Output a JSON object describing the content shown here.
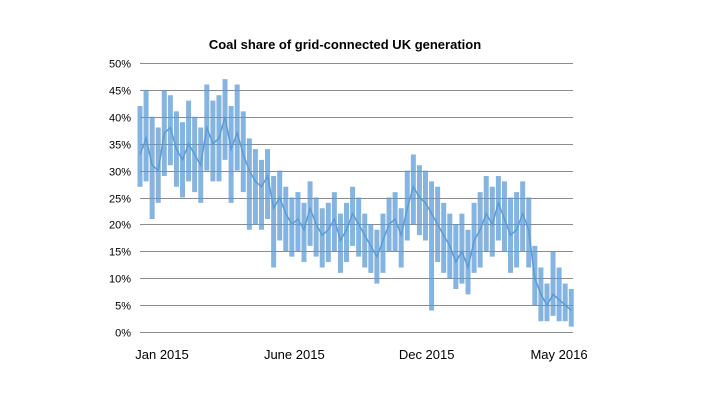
{
  "chart_data": {
    "type": "line",
    "title": "Coal share of grid-connected UK generation",
    "xlabel": "",
    "ylabel": "",
    "x_tick_labels": [
      "Jan 2015",
      "June 2015",
      "Dec 2015",
      "May 2016"
    ],
    "x_range": [
      "2015-01-01",
      "2016-05-14"
    ],
    "ylim": [
      0,
      0.5
    ],
    "y_tick_labels": [
      "0%",
      "5%",
      "10%",
      "15%",
      "20%",
      "25%",
      "30%",
      "35%",
      "40%",
      "45%",
      "50%"
    ],
    "grid": true,
    "legend": "none",
    "series_color": "#5b9bd5",
    "series": [
      {
        "x": [
          "2015-01-01",
          "2015-01-08",
          "2015-01-15",
          "2015-01-22",
          "2015-01-29",
          "2015-02-05",
          "2015-02-12",
          "2015-02-19",
          "2015-02-26",
          "2015-03-05",
          "2015-03-12",
          "2015-03-19",
          "2015-03-26",
          "2015-04-02",
          "2015-04-09",
          "2015-04-16",
          "2015-04-23",
          "2015-04-30",
          "2015-05-07",
          "2015-05-14",
          "2015-05-21",
          "2015-05-28",
          "2015-06-04",
          "2015-06-11",
          "2015-06-18",
          "2015-06-25",
          "2015-07-02",
          "2015-07-09",
          "2015-07-16",
          "2015-07-23",
          "2015-07-30",
          "2015-08-06",
          "2015-08-13",
          "2015-08-20",
          "2015-08-27",
          "2015-09-03",
          "2015-09-10",
          "2015-09-17",
          "2015-09-24",
          "2015-10-01",
          "2015-10-08",
          "2015-10-15",
          "2015-10-22",
          "2015-10-29",
          "2015-11-05",
          "2015-11-12",
          "2015-11-19",
          "2015-11-26",
          "2015-12-03",
          "2015-12-10",
          "2015-12-17",
          "2015-12-24",
          "2015-12-31",
          "2016-01-07",
          "2016-01-14",
          "2016-01-21",
          "2016-01-28",
          "2016-02-04",
          "2016-02-11",
          "2016-02-18",
          "2016-02-25",
          "2016-03-03",
          "2016-03-10",
          "2016-03-17",
          "2016-03-24",
          "2016-03-31",
          "2016-04-07",
          "2016-04-14",
          "2016-04-21",
          "2016-04-28",
          "2016-05-05",
          "2016-05-12"
        ],
        "y": [
          0.33,
          0.36,
          0.31,
          0.3,
          0.37,
          0.38,
          0.34,
          0.32,
          0.35,
          0.33,
          0.31,
          0.38,
          0.35,
          0.36,
          0.4,
          0.34,
          0.37,
          0.33,
          0.3,
          0.28,
          0.27,
          0.29,
          0.23,
          0.25,
          0.22,
          0.2,
          0.21,
          0.19,
          0.23,
          0.2,
          0.18,
          0.19,
          0.21,
          0.17,
          0.19,
          0.22,
          0.2,
          0.18,
          0.16,
          0.14,
          0.17,
          0.2,
          0.21,
          0.18,
          0.23,
          0.27,
          0.25,
          0.24,
          0.22,
          0.2,
          0.18,
          0.16,
          0.13,
          0.15,
          0.12,
          0.17,
          0.19,
          0.22,
          0.2,
          0.24,
          0.21,
          0.18,
          0.19,
          0.22,
          0.19,
          0.1,
          0.07,
          0.05,
          0.07,
          0.06,
          0.05,
          0.04
        ],
        "upper": [
          0.42,
          0.45,
          0.4,
          0.38,
          0.45,
          0.44,
          0.41,
          0.39,
          0.43,
          0.4,
          0.38,
          0.46,
          0.43,
          0.44,
          0.47,
          0.42,
          0.46,
          0.41,
          0.36,
          0.34,
          0.32,
          0.34,
          0.29,
          0.3,
          0.27,
          0.25,
          0.26,
          0.24,
          0.28,
          0.25,
          0.23,
          0.24,
          0.26,
          0.22,
          0.24,
          0.27,
          0.25,
          0.22,
          0.2,
          0.19,
          0.22,
          0.25,
          0.26,
          0.23,
          0.3,
          0.33,
          0.31,
          0.3,
          0.28,
          0.27,
          0.24,
          0.22,
          0.2,
          0.22,
          0.19,
          0.24,
          0.26,
          0.29,
          0.27,
          0.29,
          0.28,
          0.25,
          0.26,
          0.28,
          0.25,
          0.16,
          0.12,
          0.09,
          0.15,
          0.12,
          0.09,
          0.08
        ],
        "lower": [
          0.27,
          0.28,
          0.21,
          0.24,
          0.29,
          0.31,
          0.27,
          0.25,
          0.28,
          0.26,
          0.24,
          0.3,
          0.28,
          0.28,
          0.32,
          0.24,
          0.3,
          0.26,
          0.19,
          0.2,
          0.19,
          0.21,
          0.12,
          0.17,
          0.15,
          0.14,
          0.15,
          0.13,
          0.16,
          0.14,
          0.12,
          0.13,
          0.15,
          0.11,
          0.13,
          0.16,
          0.14,
          0.12,
          0.11,
          0.09,
          0.11,
          0.15,
          0.15,
          0.12,
          0.17,
          0.2,
          0.18,
          0.17,
          0.04,
          0.13,
          0.11,
          0.1,
          0.08,
          0.09,
          0.07,
          0.11,
          0.12,
          0.15,
          0.14,
          0.17,
          0.15,
          0.11,
          0.12,
          0.15,
          0.12,
          0.05,
          0.02,
          0.02,
          0.03,
          0.02,
          0.02,
          0.01
        ]
      }
    ]
  }
}
